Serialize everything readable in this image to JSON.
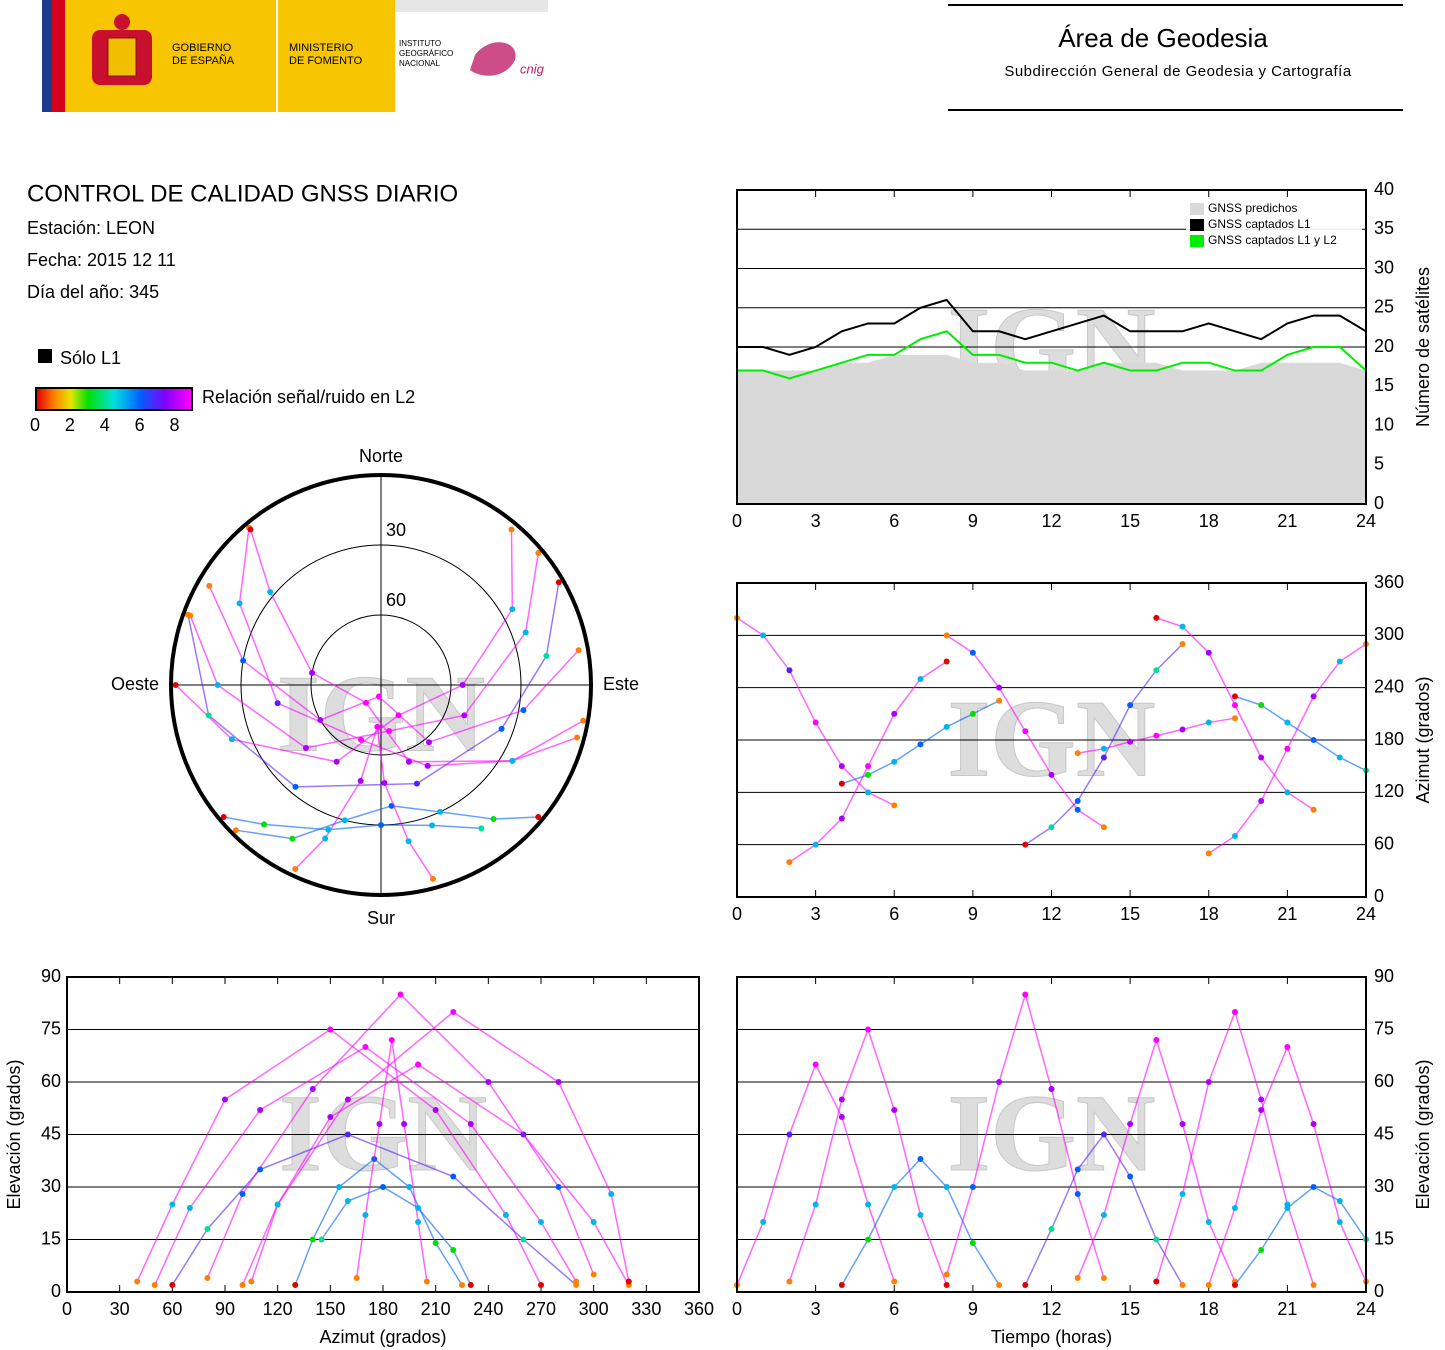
{
  "header": {
    "logo_text": [
      [
        "GOBIERNO",
        "DE ESPAÑA"
      ],
      [
        "MINISTERIO",
        "DE FOMENTO"
      ],
      [
        "INSTITUTO",
        "GEOGRÁFICO",
        "NACIONAL"
      ]
    ],
    "logo_mark": "cnig",
    "title": "Área de Geodesia",
    "subtitle": "Subdirección General de Geodesia y Cartografía"
  },
  "report": {
    "title": "CONTROL DE CALIDAD GNSS DIARIO",
    "station": "Estación: LEON",
    "date": "Fecha: 2015 12 11",
    "doy": "Día del año: 345"
  },
  "legend": {
    "l1_only": "Sólo L1",
    "snr_label": "Relación señal/ruido en L2",
    "snr_lim": [
      0,
      9
    ],
    "snr_ticks": [
      0,
      2,
      4,
      6,
      8
    ]
  },
  "watermark": "IGN",
  "tracks": [
    {
      "time": [
        0,
        1,
        2,
        3,
        4,
        5,
        6
      ],
      "azimuth": [
        320,
        300,
        260,
        200,
        150,
        120,
        105
      ],
      "elevation": [
        2,
        20,
        45,
        65,
        50,
        25,
        3
      ],
      "snr": [
        1,
        5,
        7,
        9,
        8,
        5,
        1
      ]
    },
    {
      "time": [
        2,
        3,
        4,
        5,
        6,
        7,
        8
      ],
      "azimuth": [
        40,
        60,
        90,
        150,
        210,
        250,
        270
      ],
      "elevation": [
        3,
        25,
        55,
        75,
        52,
        22,
        2
      ],
      "snr": [
        1,
        5,
        8,
        9,
        8,
        5,
        0
      ]
    },
    {
      "time": [
        4,
        5,
        6,
        7,
        8,
        9,
        10
      ],
      "azimuth": [
        130,
        140,
        155,
        175,
        195,
        210,
        225
      ],
      "elevation": [
        2,
        15,
        30,
        38,
        30,
        14,
        2
      ],
      "snr": [
        0,
        3,
        5,
        6,
        5,
        3,
        1
      ]
    },
    {
      "time": [
        8,
        9,
        10,
        11,
        12,
        13,
        14
      ],
      "azimuth": [
        300,
        280,
        240,
        190,
        140,
        100,
        80
      ],
      "elevation": [
        5,
        30,
        60,
        85,
        58,
        28,
        4
      ],
      "snr": [
        1,
        6,
        8,
        9,
        8,
        6,
        1
      ]
    },
    {
      "time": [
        11,
        12,
        13,
        14,
        15,
        16,
        17
      ],
      "azimuth": [
        60,
        80,
        110,
        160,
        220,
        260,
        290
      ],
      "elevation": [
        2,
        18,
        35,
        45,
        33,
        15,
        2
      ],
      "snr": [
        0,
        4,
        6,
        7,
        6,
        4,
        1
      ]
    },
    {
      "time": [
        13,
        14,
        15,
        16,
        17,
        18,
        19
      ],
      "azimuth": [
        165,
        170,
        178,
        185,
        192,
        200,
        205
      ],
      "elevation": [
        4,
        22,
        48,
        72,
        48,
        20,
        3
      ],
      "snr": [
        1,
        5,
        8,
        9,
        8,
        5,
        1
      ]
    },
    {
      "time": [
        16,
        17,
        18,
        19,
        20,
        21,
        22
      ],
      "azimuth": [
        320,
        310,
        280,
        220,
        160,
        120,
        100
      ],
      "elevation": [
        3,
        28,
        60,
        80,
        55,
        25,
        2
      ],
      "snr": [
        0,
        5,
        8,
        9,
        8,
        5,
        1
      ]
    },
    {
      "time": [
        18,
        19,
        20,
        21,
        22,
        23,
        24
      ],
      "azimuth": [
        50,
        70,
        110,
        170,
        230,
        270,
        290
      ],
      "elevation": [
        2,
        24,
        52,
        70,
        48,
        20,
        3
      ],
      "snr": [
        1,
        5,
        8,
        9,
        8,
        5,
        1
      ]
    },
    {
      "time": [
        19,
        20,
        21,
        22,
        23,
        24
      ],
      "azimuth": [
        230,
        220,
        200,
        180,
        160,
        145
      ],
      "elevation": [
        2,
        12,
        24,
        30,
        26,
        15
      ],
      "snr": [
        0,
        3,
        5,
        6,
        5,
        4
      ]
    }
  ],
  "chart_data": [
    {
      "type": "line",
      "ylabel": "Número de satélites",
      "yaxis": "right",
      "legend": "upper right",
      "grid": true,
      "x": [
        0,
        1,
        2,
        3,
        4,
        5,
        6,
        7,
        8,
        9,
        10,
        11,
        12,
        13,
        14,
        15,
        16,
        17,
        18,
        19,
        20,
        21,
        22,
        23,
        24
      ],
      "xlim": [
        0,
        24
      ],
      "xticks": [
        0,
        3,
        6,
        9,
        12,
        15,
        18,
        21,
        24
      ],
      "ylim": [
        0,
        40
      ],
      "yticks": [
        0,
        5,
        10,
        15,
        20,
        25,
        30,
        35,
        40
      ],
      "series": [
        {
          "name": "GNSS predichos",
          "color": "#d9d9d9",
          "area": true,
          "values": [
            17,
            17,
            17,
            17,
            18,
            18,
            19,
            19,
            19,
            18,
            18,
            17,
            17,
            17,
            18,
            18,
            18,
            17,
            17,
            17,
            18,
            18,
            18,
            18,
            17
          ]
        },
        {
          "name": "GNSS captados L1",
          "color": "#000000",
          "values": [
            20,
            20,
            19,
            20,
            22,
            23,
            23,
            25,
            26,
            22,
            22,
            21,
            22,
            23,
            24,
            22,
            22,
            22,
            23,
            22,
            21,
            23,
            24,
            24,
            22
          ]
        },
        {
          "name": "GNSS captados L1 y L2",
          "color": "#00ee00",
          "values": [
            17,
            17,
            16,
            17,
            18,
            19,
            19,
            21,
            22,
            19,
            19,
            18,
            18,
            17,
            18,
            17,
            17,
            18,
            18,
            17,
            17,
            19,
            20,
            20,
            17
          ]
        }
      ]
    },
    {
      "type": "polar",
      "directions": [
        "Norte",
        "Este",
        "Sur",
        "Oeste"
      ],
      "rlim": [
        0,
        90
      ],
      "rticks": [
        30,
        60
      ],
      "theta": "azimuth",
      "r": "elevation"
    },
    {
      "type": "scatter",
      "x": "time",
      "y": "azimuth",
      "ylabel": "Azimut (grados)",
      "yaxis": "right",
      "grid": true,
      "xlim": [
        0,
        24
      ],
      "xticks": [
        0,
        3,
        6,
        9,
        12,
        15,
        18,
        21,
        24
      ],
      "ylim": [
        0,
        360
      ],
      "yticks": [
        0,
        60,
        120,
        180,
        240,
        300,
        360
      ]
    },
    {
      "type": "scatter",
      "x": "azimuth",
      "y": "elevation",
      "xlabel": "Azimut (grados)",
      "ylabel": "Elevación (grados)",
      "yaxis": "left",
      "grid": true,
      "xlim": [
        0,
        360
      ],
      "xticks": [
        0,
        30,
        60,
        90,
        120,
        150,
        180,
        210,
        240,
        270,
        300,
        330,
        360
      ],
      "ylim": [
        0,
        90
      ],
      "yticks": [
        0,
        15,
        30,
        45,
        60,
        75,
        90
      ]
    },
    {
      "type": "scatter",
      "x": "time",
      "y": "elevation",
      "xlabel": "Tiempo (horas)",
      "ylabel": "Elevación (grados)",
      "yaxis": "right",
      "grid": true,
      "xlim": [
        0,
        24
      ],
      "xticks": [
        0,
        3,
        6,
        9,
        12,
        15,
        18,
        21,
        24
      ],
      "ylim": [
        0,
        90
      ],
      "yticks": [
        0,
        15,
        30,
        45,
        60,
        75,
        90
      ]
    }
  ]
}
